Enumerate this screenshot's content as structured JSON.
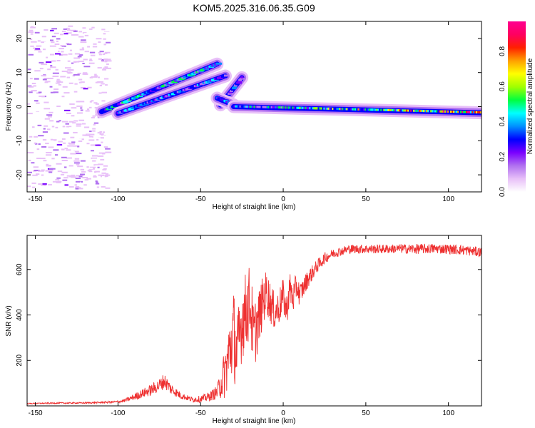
{
  "title": "KOM5.2025.316.06.35.G09",
  "chart_data": [
    {
      "type": "heatmap",
      "xlabel": "Height of straight line (km)",
      "ylabel": "Frequency (Hz)",
      "xlim": [
        -155,
        120
      ],
      "ylim": [
        -25,
        25
      ],
      "xticks": [
        -150,
        -100,
        -50,
        0,
        50,
        100
      ],
      "yticks": [
        -20,
        -10,
        0,
        10,
        20
      ],
      "colorbar": {
        "label": "Normalized spectral amplitude",
        "range": [
          0,
          0.97
        ],
        "ticks": [
          "0.0",
          "0.2",
          "0.4",
          "0.6",
          "0.8"
        ],
        "tick_values": [
          0.0,
          0.2,
          0.4,
          0.6,
          0.8
        ],
        "palette": [
          "#ffffff",
          "#e8c0f8",
          "#b070f0",
          "#7a00ff",
          "#0000ff",
          "#0090ff",
          "#00ffff",
          "#00ff40",
          "#a0ff00",
          "#ffff00",
          "#ffa000",
          "#ff2000",
          "#ff0060",
          "#ff0090"
        ]
      },
      "tracks": [
        {
          "from": [
            -110,
            -1.5
          ],
          "to": [
            -40,
            12.5
          ],
          "amp": 0.45
        },
        {
          "from": [
            -100,
            -2.0
          ],
          "to": [
            -35,
            9.0
          ],
          "amp": 0.4
        },
        {
          "from": [
            -38,
            0.5
          ],
          "to": [
            -25,
            8.5
          ],
          "amp": 0.3
        },
        {
          "from": [
            -40,
            2.5
          ],
          "to": [
            -30,
            0.5
          ],
          "amp": 0.35
        },
        {
          "from": [
            -30,
            0.0
          ],
          "to": [
            120,
            -1.8
          ],
          "amp": 0.8
        }
      ]
    },
    {
      "type": "line",
      "xlabel": "Height of straight line (km)",
      "ylabel": "SNR (v/v)",
      "xlim": [
        -155,
        120
      ],
      "ylim": [
        0,
        750
      ],
      "xticks": [
        -150,
        -100,
        -50,
        0,
        50,
        100
      ],
      "yticks": [
        200,
        400,
        600
      ],
      "series": [
        {
          "color": "#ee3030",
          "x": [
            -155,
            -140,
            -120,
            -110,
            -100,
            -95,
            -90,
            -85,
            -80,
            -75,
            -72,
            -68,
            -62,
            -58,
            -55,
            -50,
            -45,
            -40,
            -35,
            -32,
            -30,
            -28,
            -25,
            -22,
            -20,
            -18,
            -15,
            -12,
            -10,
            -7,
            -5,
            -3,
            0,
            2,
            4,
            6,
            8,
            10,
            15,
            20,
            25,
            30,
            40,
            50,
            60,
            70,
            80,
            90,
            100,
            110,
            120
          ],
          "y": [
            10,
            12,
            13,
            15,
            18,
            25,
            40,
            55,
            70,
            90,
            110,
            75,
            45,
            35,
            28,
            30,
            40,
            60,
            150,
            260,
            320,
            220,
            380,
            430,
            460,
            300,
            380,
            470,
            500,
            440,
            410,
            430,
            480,
            420,
            520,
            470,
            530,
            490,
            560,
            610,
            650,
            670,
            690,
            690,
            690,
            692,
            690,
            692,
            690,
            685,
            675
          ],
          "noise": [
            2,
            3,
            3,
            4,
            5,
            8,
            15,
            20,
            25,
            30,
            35,
            25,
            15,
            12,
            12,
            15,
            20,
            30,
            120,
            160,
            200,
            170,
            180,
            170,
            170,
            160,
            130,
            110,
            100,
            90,
            80,
            80,
            80,
            70,
            70,
            70,
            60,
            50,
            40,
            30,
            25,
            20,
            20,
            20,
            20,
            20,
            22,
            22,
            22,
            22,
            22
          ]
        }
      ]
    }
  ]
}
